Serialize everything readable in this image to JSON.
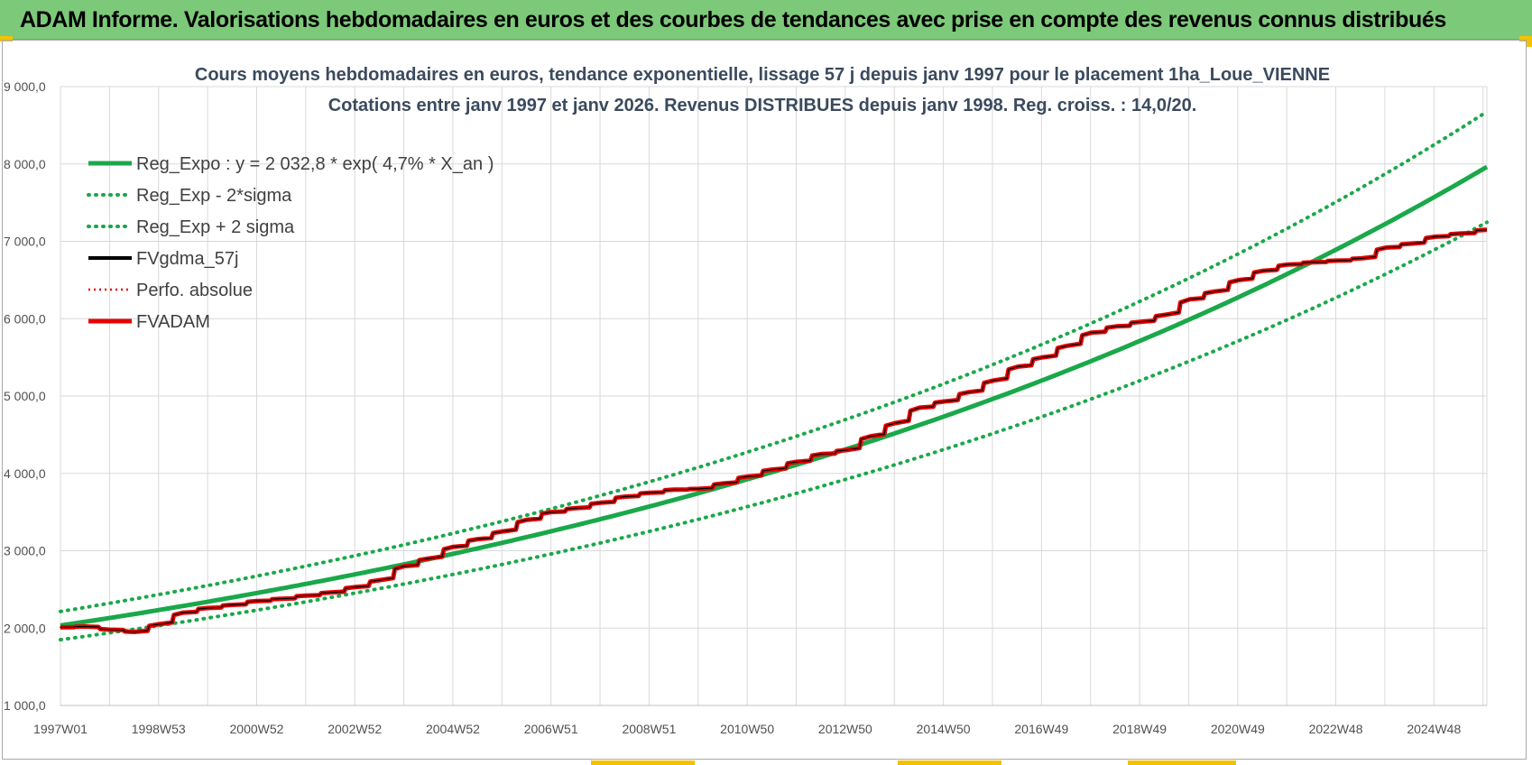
{
  "header": {
    "title": "ADAM Informe. Valorisations hebdomadaires en euros et des courbes de tendances avec prise en compte des revenus connus distribués"
  },
  "colors": {
    "header_bg": "#7dc97a",
    "trend": "#1aa84a",
    "band": "#1aa84a",
    "fv": "#000000",
    "perfo": "#e60000",
    "adam": "#e60000",
    "grid": "#d9d9d9"
  },
  "chart_data": {
    "type": "line",
    "title": "Cours moyens  hebdomadaires en euros, tendance exponentielle, lissage 57 j depuis janv 1997 pour le placement 1ha_Loue_VIENNE",
    "subtitle": "Cotations entre janv 1997 et janv 2026. Revenus DISTRIBUES depuis janv 1998.  Reg. croiss. : 14,0/20.",
    "xlabel": "",
    "ylabel": "",
    "x_ticks": [
      "1997W01",
      "1998W53",
      "2000W52",
      "2002W52",
      "2004W52",
      "2006W51",
      "2008W51",
      "2010W50",
      "2012W50",
      "2014W50",
      "2016W49",
      "2018W49",
      "2020W49",
      "2022W48",
      "2024W48"
    ],
    "xlim": [
      1997.0,
      2026.05
    ],
    "ylim": [
      1000,
      9000
    ],
    "y_ticks": [
      1000,
      2000,
      3000,
      4000,
      5000,
      6000,
      7000,
      8000,
      9000
    ],
    "y_tick_labels": [
      "1 000,0",
      "2 000,0",
      "3 000,0",
      "4 000,0",
      "5 000,0",
      "6 000,0",
      "7 000,0",
      "8 000,0",
      "9 000,0"
    ],
    "grid": true,
    "legend_position": "top-left",
    "trend": {
      "a": 2032.8,
      "rate": 0.047
    },
    "series": [
      {
        "name": "Reg_Expo : y = 2 032,8 * exp( 4,7% *  X_an )",
        "style": "solid",
        "color": "#1aa84a",
        "x": [
          1997,
          2000,
          2003,
          2006,
          2009,
          2012,
          2015,
          2018,
          2021,
          2024,
          2026.05
        ],
        "y": [
          2033,
          2342,
          2697,
          3107,
          3578,
          4121,
          4746,
          5466,
          6295,
          7250,
          8000
        ]
      },
      {
        "name": "Reg_Exp - 2*sigma",
        "style": "dotted",
        "color": "#1aa84a",
        "x": [
          1997,
          2000,
          2003,
          2006,
          2009,
          2012,
          2015,
          2018,
          2021,
          2024,
          2026.05
        ],
        "y": [
          1850,
          2130,
          2455,
          2828,
          3256,
          3750,
          4319,
          4974,
          5729,
          6598,
          7280
        ]
      },
      {
        "name": "Reg_Exp + 2 sigma",
        "style": "dotted",
        "color": "#1aa84a",
        "x": [
          1997,
          2000,
          2003,
          2006,
          2009,
          2012,
          2015,
          2018,
          2021,
          2024,
          2026.05
        ],
        "y": [
          2215,
          2552,
          2940,
          3386,
          3900,
          4492,
          5173,
          5958,
          6862,
          7902,
          8720
        ]
      },
      {
        "name": "FVgdma_57j",
        "style": "solid-thin",
        "color": "#000000",
        "x": [
          1997,
          1997.5,
          1998,
          1998.5,
          1999,
          1999.5,
          2000,
          2000.5,
          2001,
          2001.5,
          2002,
          2002.5,
          2003,
          2003.5,
          2004,
          2004.5,
          2005,
          2005.5,
          2006,
          2006.5,
          2007,
          2007.5,
          2008,
          2008.5,
          2009,
          2009.5,
          2010,
          2010.5,
          2011,
          2011.5,
          2012,
          2012.5,
          2013,
          2013.5,
          2014,
          2014.5,
          2015,
          2015.5,
          2016,
          2016.5,
          2017,
          2017.5,
          2018,
          2018.5,
          2019,
          2019.5,
          2020,
          2020.5,
          2021,
          2021.5,
          2022,
          2022.5,
          2023,
          2023.5,
          2024,
          2024.5,
          2025,
          2025.5,
          2026.05
        ],
        "y": [
          2010,
          2020,
          1980,
          1950,
          2050,
          2200,
          2260,
          2300,
          2350,
          2380,
          2420,
          2460,
          2530,
          2620,
          2800,
          2900,
          3050,
          3150,
          3250,
          3400,
          3500,
          3550,
          3620,
          3700,
          3750,
          3790,
          3800,
          3870,
          3960,
          4050,
          4150,
          4250,
          4300,
          4480,
          4650,
          4850,
          4930,
          5050,
          5200,
          5380,
          5500,
          5650,
          5820,
          5900,
          5960,
          6050,
          6250,
          6350,
          6500,
          6620,
          6700,
          6730,
          6750,
          6780,
          6920,
          6970,
          7060,
          7100,
          7150
        ]
      },
      {
        "name": "Perfo. absolue",
        "style": "dotted",
        "color": "#e60000",
        "x": [
          1997,
          1997.5,
          1998,
          1998.5,
          1999,
          1999.5,
          2000,
          2000.5,
          2001,
          2001.5,
          2002,
          2002.5,
          2003,
          2003.5,
          2004,
          2004.5,
          2005,
          2005.5,
          2006,
          2006.5,
          2007,
          2007.5,
          2008,
          2008.5,
          2009,
          2009.5,
          2010,
          2010.5,
          2011,
          2011.5,
          2012,
          2012.5,
          2013,
          2013.5,
          2014,
          2014.5,
          2015,
          2015.5,
          2016,
          2016.5,
          2017,
          2017.5,
          2018,
          2018.5,
          2019,
          2019.5,
          2020,
          2020.5,
          2021,
          2021.5,
          2022,
          2022.5,
          2023,
          2023.5,
          2024,
          2024.5,
          2025,
          2025.5,
          2026.05
        ],
        "y": [
          2010,
          2020,
          1980,
          1950,
          2050,
          2200,
          2260,
          2300,
          2350,
          2380,
          2420,
          2460,
          2530,
          2620,
          2800,
          2900,
          3050,
          3150,
          3250,
          3400,
          3500,
          3550,
          3620,
          3700,
          3750,
          3790,
          3800,
          3870,
          3960,
          4050,
          4150,
          4250,
          4300,
          4480,
          4650,
          4850,
          4930,
          5050,
          5200,
          5380,
          5500,
          5650,
          5820,
          5900,
          5960,
          6050,
          6250,
          6350,
          6500,
          6620,
          6700,
          6730,
          6750,
          6780,
          6920,
          6970,
          7060,
          7100,
          7150
        ]
      },
      {
        "name": "FVADAM",
        "style": "solid-thick",
        "color": "#e60000",
        "x": [
          1997,
          1997.5,
          1998,
          1998.5,
          1999,
          1999.5,
          2000,
          2000.5,
          2001,
          2001.5,
          2002,
          2002.5,
          2003,
          2003.5,
          2004,
          2004.5,
          2005,
          2005.5,
          2006,
          2006.5,
          2007,
          2007.5,
          2008,
          2008.5,
          2009,
          2009.5,
          2010,
          2010.5,
          2011,
          2011.5,
          2012,
          2012.5,
          2013,
          2013.5,
          2014,
          2014.5,
          2015,
          2015.5,
          2016,
          2016.5,
          2017,
          2017.5,
          2018,
          2018.5,
          2019,
          2019.5,
          2020,
          2020.5,
          2021,
          2021.5,
          2022,
          2022.5,
          2023,
          2023.5,
          2024,
          2024.5,
          2025,
          2025.5,
          2026.05
        ],
        "y": [
          2010,
          2020,
          1980,
          1950,
          2050,
          2200,
          2260,
          2300,
          2350,
          2380,
          2420,
          2460,
          2530,
          2620,
          2800,
          2900,
          3050,
          3150,
          3250,
          3400,
          3500,
          3550,
          3620,
          3700,
          3750,
          3790,
          3800,
          3870,
          3960,
          4050,
          4150,
          4250,
          4300,
          4480,
          4650,
          4850,
          4930,
          5050,
          5200,
          5380,
          5500,
          5650,
          5820,
          5900,
          5960,
          6050,
          6250,
          6350,
          6500,
          6620,
          6700,
          6730,
          6750,
          6780,
          6920,
          6970,
          7060,
          7100,
          7150
        ]
      }
    ]
  }
}
